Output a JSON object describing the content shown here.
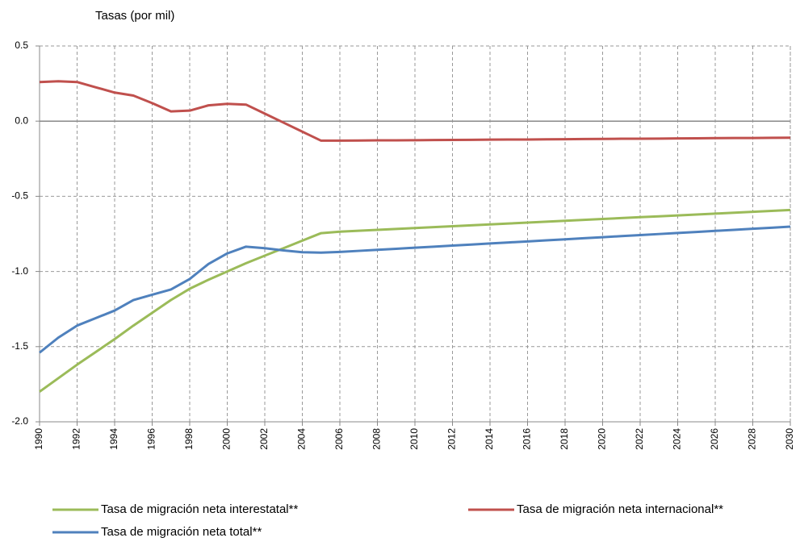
{
  "chart_data": {
    "type": "line",
    "y_label": "Tasas (por mil)",
    "x": [
      1990,
      1991,
      1992,
      1993,
      1994,
      1995,
      1996,
      1997,
      1998,
      1999,
      2000,
      2001,
      2002,
      2003,
      2004,
      2005,
      2006,
      2007,
      2008,
      2009,
      2010,
      2011,
      2012,
      2013,
      2014,
      2015,
      2016,
      2017,
      2018,
      2019,
      2020,
      2021,
      2022,
      2023,
      2024,
      2025,
      2026,
      2027,
      2028,
      2029,
      2030
    ],
    "series": [
      {
        "name": "Tasa de migración neta interestatal**",
        "color": "#9bbb59",
        "values": [
          -1.8,
          -1.71,
          -1.62,
          -1.535,
          -1.45,
          -1.36,
          -1.275,
          -1.19,
          -1.115,
          -1.055,
          -1.0,
          -0.945,
          -0.895,
          -0.845,
          -0.795,
          -0.745,
          -0.735,
          -0.729,
          -0.723,
          -0.717,
          -0.711,
          -0.705,
          -0.699,
          -0.693,
          -0.687,
          -0.681,
          -0.675,
          -0.669,
          -0.663,
          -0.657,
          -0.651,
          -0.645,
          -0.639,
          -0.633,
          -0.627,
          -0.621,
          -0.615,
          -0.609,
          -0.603,
          -0.597,
          -0.591
        ]
      },
      {
        "name": "Tasa de migración neta internacional**",
        "color": "#c0504d",
        "values": [
          0.26,
          0.265,
          0.26,
          0.225,
          0.19,
          0.17,
          0.12,
          0.065,
          0.07,
          0.105,
          0.115,
          0.11,
          0.05,
          -0.01,
          -0.07,
          -0.13,
          -0.13,
          -0.129,
          -0.128,
          -0.128,
          -0.127,
          -0.126,
          -0.125,
          -0.124,
          -0.123,
          -0.122,
          -0.122,
          -0.121,
          -0.12,
          -0.119,
          -0.118,
          -0.117,
          -0.117,
          -0.116,
          -0.115,
          -0.114,
          -0.113,
          -0.112,
          -0.112,
          -0.111,
          -0.11
        ]
      },
      {
        "name": "Tasa de migración neta total**",
        "color": "#4f81bd",
        "values": [
          -1.54,
          -1.44,
          -1.36,
          -1.31,
          -1.26,
          -1.19,
          -1.155,
          -1.12,
          -1.05,
          -0.95,
          -0.88,
          -0.835,
          -0.845,
          -0.86,
          -0.872,
          -0.875,
          -0.87,
          -0.863,
          -0.856,
          -0.849,
          -0.842,
          -0.835,
          -0.828,
          -0.821,
          -0.814,
          -0.807,
          -0.8,
          -0.793,
          -0.786,
          -0.779,
          -0.772,
          -0.765,
          -0.758,
          -0.751,
          -0.744,
          -0.737,
          -0.73,
          -0.723,
          -0.716,
          -0.709,
          -0.702
        ]
      }
    ],
    "xlim": [
      1990,
      2030
    ],
    "xticks": [
      1990,
      1992,
      1994,
      1996,
      1998,
      2000,
      2002,
      2004,
      2006,
      2008,
      2010,
      2012,
      2014,
      2016,
      2018,
      2020,
      2022,
      2024,
      2026,
      2028,
      2030
    ],
    "ylim": [
      -2,
      0.5
    ],
    "yticks": [
      0.5,
      {
        "value": 0,
        "label": "0.0"
      },
      -0.5,
      {
        "value": -1,
        "label": "-1.0"
      },
      -1.5,
      {
        "value": -2,
        "label": "-2.0"
      }
    ],
    "grid": true
  }
}
